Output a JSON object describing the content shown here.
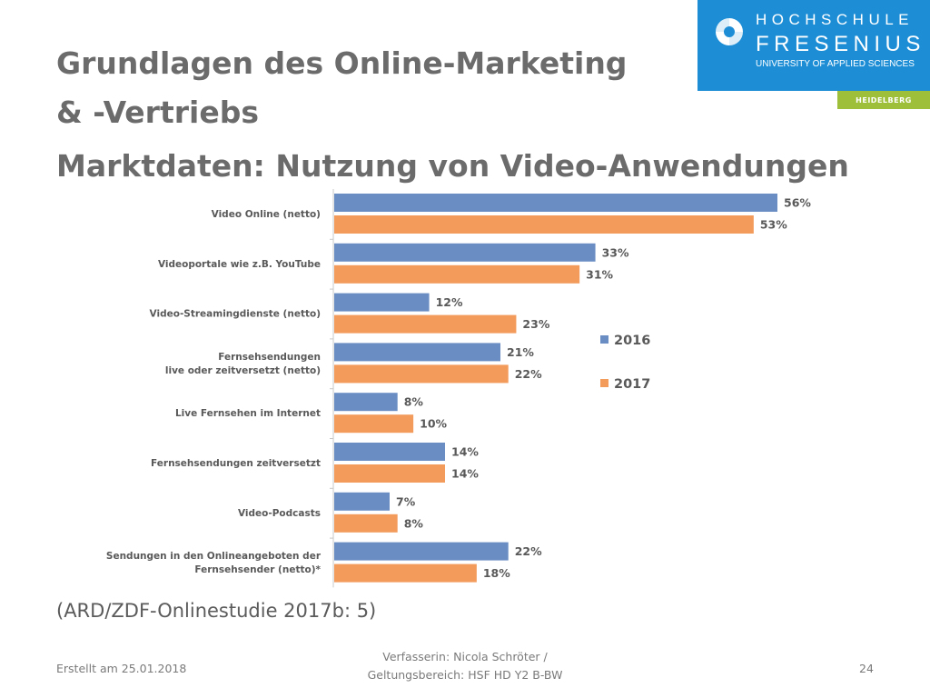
{
  "slide": {
    "title_line1": "Grundlagen des Online-Marketing",
    "title_line2": "& -Vertriebs",
    "title_line3": "Marktdaten: Nutzung von Video-Anwendungen",
    "source": "(ARD/ZDF-Onlinestudie 2017b: 5)"
  },
  "logo": {
    "line1": "HOCHSCHULE",
    "line2": "FRESENIUS",
    "line3": "UNIVERSITY OF APPLIED SCIENCES",
    "campus": "HEIDELBERG"
  },
  "footer": {
    "left": "Erstellt am 25.01.2018",
    "center_line1": "Verfasserin: Nicola Schröter /",
    "center_line2": "Geltungsbereich:  HSF HD Y2 B-BW",
    "page_number": "24"
  },
  "colors": {
    "title": "#6b6b6b",
    "logo_blue": "#1d8ed6",
    "campus_green": "#9dbf3a",
    "series_2016": "#6a8ec4",
    "series_2017": "#f29b5b"
  },
  "chart_data": {
    "type": "bar",
    "orientation": "horizontal",
    "categories": [
      [
        "Video Online (netto)"
      ],
      [
        "Videoportale wie z.B. YouTube"
      ],
      [
        "Video-Streamingdienste (netto)"
      ],
      [
        "Fernsehsendungen",
        "live oder zeitversetzt (netto)"
      ],
      [
        "Live Fernsehen im Internet"
      ],
      [
        "Fernsehsendungen zeitversetzt"
      ],
      [
        "Video-Podcasts"
      ],
      [
        "Sendungen in den Onlineangeboten der",
        "Fernsehsender (netto)*"
      ]
    ],
    "series": [
      {
        "name": "2016",
        "color": "#6a8ec4",
        "values": [
          56,
          33,
          12,
          21,
          8,
          14,
          7,
          22
        ]
      },
      {
        "name": "2017",
        "color": "#f29b5b",
        "values": [
          53,
          31,
          23,
          22,
          10,
          14,
          8,
          18
        ]
      }
    ],
    "value_suffix": "%",
    "xlim": [
      0,
      56
    ],
    "grid": false,
    "legend_position": "right"
  }
}
